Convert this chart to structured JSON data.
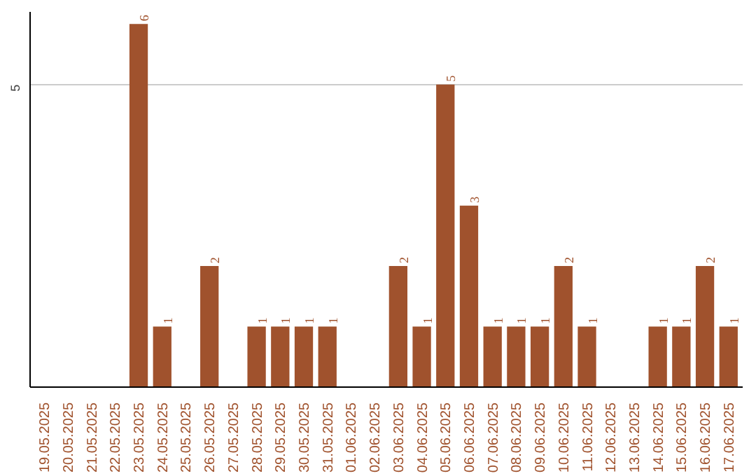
{
  "chart_data": {
    "type": "bar",
    "categories": [
      "19.05.2025",
      "20.05.2025",
      "21.05.2025",
      "22.05.2025",
      "23.05.2025",
      "24.05.2025",
      "25.05.2025",
      "26.05.2025",
      "27.05.2025",
      "28.05.2025",
      "29.05.2025",
      "30.05.2025",
      "31.05.2025",
      "01.06.2025",
      "02.06.2025",
      "03.06.2025",
      "04.06.2025",
      "05.06.2025",
      "06.06.2025",
      "07.06.2025",
      "08.06.2025",
      "09.06.2025",
      "10.06.2025",
      "11.06.2025",
      "12.06.2025",
      "13.06.2025",
      "14.06.2025",
      "15.06.2025",
      "16.06.2025",
      "17.06.2025"
    ],
    "values": [
      0,
      0,
      0,
      0,
      6,
      1,
      0,
      2,
      0,
      1,
      1,
      1,
      1,
      0,
      0,
      2,
      1,
      5,
      3,
      1,
      1,
      1,
      2,
      1,
      0,
      0,
      1,
      1,
      2,
      1
    ],
    "value_labels": [
      null,
      null,
      null,
      null,
      "6",
      "1",
      null,
      "2",
      null,
      "1",
      "1",
      "1",
      "1",
      null,
      null,
      "2",
      "1",
      "5",
      "3",
      "1",
      "1",
      "1",
      "2",
      "1",
      null,
      null,
      "1",
      "1",
      "2",
      "1"
    ],
    "color": "#a0522d",
    "ylim": [
      0,
      6.2
    ],
    "yticks": [
      5
    ],
    "grid": "y"
  }
}
